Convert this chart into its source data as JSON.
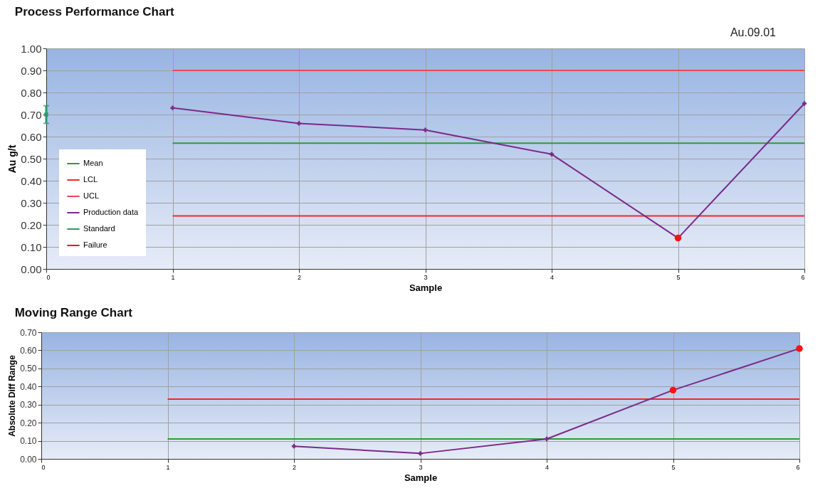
{
  "chart_data": [
    {
      "type": "line",
      "title": "Process Performance Chart",
      "xlabel": "Sample",
      "ylabel": "Au g/t",
      "annotations": [
        "Au.09.01"
      ],
      "xlim": [
        0,
        6
      ],
      "xticks": [
        0,
        1,
        2,
        3,
        4,
        5,
        6
      ],
      "ylim": [
        0,
        1
      ],
      "yticks": [
        {
          "value": 0,
          "label": "0.00"
        },
        {
          "value": 0.1,
          "label": "0.10"
        },
        {
          "value": 0.2,
          "label": "0.20"
        },
        {
          "value": 0.3,
          "label": "0.30"
        },
        {
          "value": 0.4,
          "label": "0.40"
        },
        {
          "value": 0.5,
          "label": "0.50"
        },
        {
          "value": 0.6,
          "label": "0.60"
        },
        {
          "value": 0.7,
          "label": "0.70"
        },
        {
          "value": 0.8,
          "label": "0.80"
        },
        {
          "value": 0.9,
          "label": "0.90"
        },
        {
          "value": 1,
          "label": "1.00"
        }
      ],
      "grid": true,
      "legend": "bottom left",
      "series": [
        {
          "name": "Mean",
          "color": "#2e9a3a",
          "x": [
            1,
            6
          ],
          "values": [
            0.57,
            0.57
          ]
        },
        {
          "name": "LCL",
          "color": "#ee2a2a",
          "x": [
            1,
            6
          ],
          "values": [
            0.24,
            0.24
          ]
        },
        {
          "name": "UCL",
          "color": "#e84a5a",
          "x": [
            1,
            6
          ],
          "values": [
            0.9,
            0.9
          ]
        },
        {
          "name": "Production data",
          "color": "#7a2a8a",
          "marker": "cross",
          "x": [
            1,
            2,
            3,
            4,
            5,
            6
          ],
          "values": [
            0.73,
            0.66,
            0.63,
            0.52,
            0.14,
            0.75
          ]
        },
        {
          "name": "Standard",
          "type": "scatter",
          "color": "#2a9a6a",
          "marker": "square",
          "x": [
            0
          ],
          "values": [
            0.7
          ],
          "errors": [
            [
              0.66,
              0.74
            ]
          ]
        },
        {
          "name": "Failure",
          "type": "scatter",
          "color": "#ff1010",
          "marker": "circle",
          "x": [
            5
          ],
          "values": [
            0.14
          ]
        }
      ]
    },
    {
      "type": "line",
      "title": "Moving Range Chart",
      "xlabel": "Sample",
      "ylabel": "Absolute Diff Range",
      "xlim": [
        0,
        6
      ],
      "xticks": [
        0,
        1,
        2,
        3,
        4,
        5,
        6
      ],
      "ylim": [
        0,
        0.7
      ],
      "yticks": [
        {
          "value": 0,
          "label": "0.00"
        },
        {
          "value": 0.1,
          "label": "0.10"
        },
        {
          "value": 0.2,
          "label": "0.20"
        },
        {
          "value": 0.3,
          "label": "0.30"
        },
        {
          "value": 0.4,
          "label": "0.40"
        },
        {
          "value": 0.5,
          "label": "0.50"
        },
        {
          "value": 0.6,
          "label": "0.60"
        },
        {
          "value": 0.7,
          "label": "0.70"
        }
      ],
      "grid": true,
      "series": [
        {
          "color": "#2e9a3a",
          "x": [
            1,
            6
          ],
          "values": [
            0.11,
            0.11
          ]
        },
        {
          "color": "#ee2a2a",
          "x": [
            1,
            6
          ],
          "values": [
            0.33,
            0.33
          ]
        },
        {
          "color": "#7a2a8a",
          "marker": "cross",
          "x": [
            2,
            3,
            4,
            5,
            6
          ],
          "values": [
            0.07,
            0.03,
            0.11,
            0.38,
            0.61
          ]
        },
        {
          "type": "scatter",
          "color": "#ff1010",
          "marker": "circle",
          "x": [
            5,
            6
          ],
          "values": [
            0.38,
            0.61
          ]
        }
      ]
    }
  ]
}
